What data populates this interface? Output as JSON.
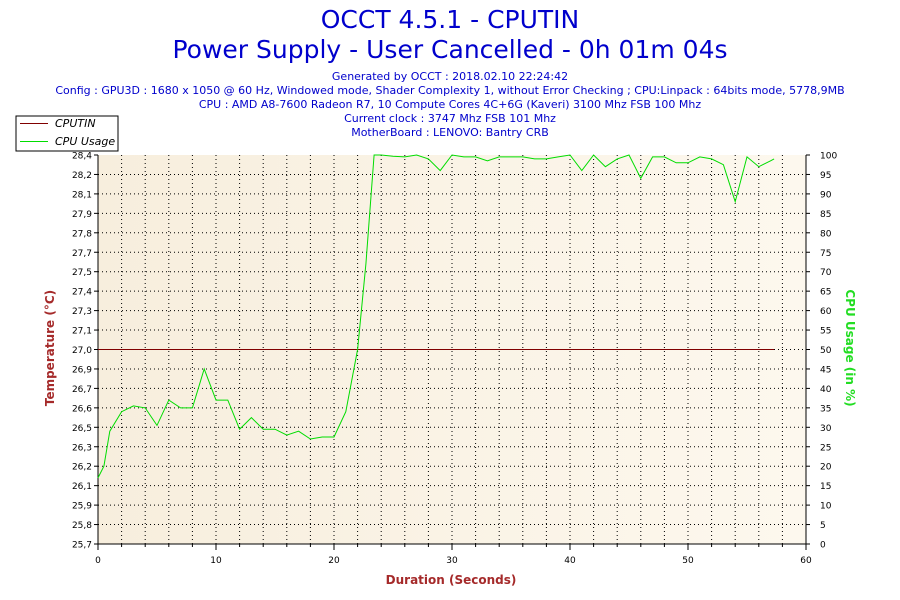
{
  "header": {
    "title": "OCCT 4.5.1 - CPUTIN",
    "subtitle": "Power Supply - User Cancelled - 0h 01m 04s",
    "info_lines": [
      "Generated by OCCT : 2018.02.10 22:24:42",
      "Config : GPU3D : 1680 x 1050 @ 60 Hz, Windowed mode, Shader Complexity 1, without Error Checking ; CPU:Linpack : 64bits mode, 5778,9MB",
      "CPU : AMD A8-7600 Radeon R7, 10 Compute Cores 4C+6G (Kaveri) 3100 Mhz FSB 100 Mhz",
      "Current clock : 3747 Mhz FSB 101 Mhz",
      "MotherBoard : LENOVO: Bantry CRB"
    ]
  },
  "chart_data": {
    "type": "line",
    "xlabel": "Duration (Seconds)",
    "ylabel": "Temperature (°C)",
    "y2label": "CPU Usage (in %)",
    "xlim": [
      0,
      60
    ],
    "ylim": [
      25.7,
      28.3
    ],
    "y2lim": [
      0,
      100
    ],
    "x_ticks": [
      0,
      10,
      20,
      30,
      40,
      50,
      60
    ],
    "y_ticks": [
      "25,7",
      "25,8",
      "25,9",
      "26,1",
      "26,2",
      "26,3",
      "26,5",
      "26,6",
      "26,7",
      "26,9",
      "27,0",
      "27,1",
      "27,3",
      "27,4",
      "27,5",
      "27,7",
      "27,8",
      "27,9",
      "28,1",
      "28,2",
      "28,4"
    ],
    "y2_ticks": [
      0,
      5,
      10,
      15,
      20,
      25,
      30,
      35,
      40,
      45,
      50,
      55,
      60,
      65,
      70,
      75,
      80,
      85,
      90,
      95,
      100
    ],
    "grid": true,
    "legend_position": "top-left",
    "series": [
      {
        "name": "CPUTIN",
        "axis": "left",
        "color": "#800000",
        "x": [
          0,
          57.3
        ],
        "values": [
          27.0,
          27.0
        ]
      },
      {
        "name": "CPU Usage",
        "axis": "right",
        "color": "#00dd00",
        "x": [
          0,
          0.5,
          1,
          2,
          3,
          4,
          5,
          6,
          7,
          8,
          9,
          10,
          11,
          12,
          13,
          14,
          15,
          16,
          17,
          18,
          19,
          20,
          21,
          22,
          22.7,
          23.4,
          24,
          25,
          26,
          27,
          28,
          29,
          30,
          31,
          32,
          33,
          34,
          35,
          36,
          37,
          38,
          39,
          40,
          41,
          42,
          43,
          44,
          45,
          46,
          47,
          48,
          49,
          50,
          51,
          52,
          53,
          54,
          55,
          56,
          57,
          57.3
        ],
        "values": [
          17,
          20,
          29,
          34,
          35.5,
          35,
          30.5,
          37,
          35,
          35,
          45,
          37,
          37,
          29.5,
          32.5,
          29.5,
          29.5,
          28,
          29,
          27,
          27.5,
          27.5,
          34,
          50,
          72,
          100,
          100,
          99.7,
          99.5,
          100,
          99,
          96,
          100,
          99.5,
          99.5,
          98.5,
          99.5,
          99.5,
          99.5,
          99,
          99,
          99.5,
          100,
          96,
          100,
          97,
          99,
          100,
          94,
          99.5,
          99.5,
          98,
          98,
          99.5,
          99,
          97.5,
          88,
          99.5,
          97,
          98.5,
          99
        ]
      }
    ]
  }
}
